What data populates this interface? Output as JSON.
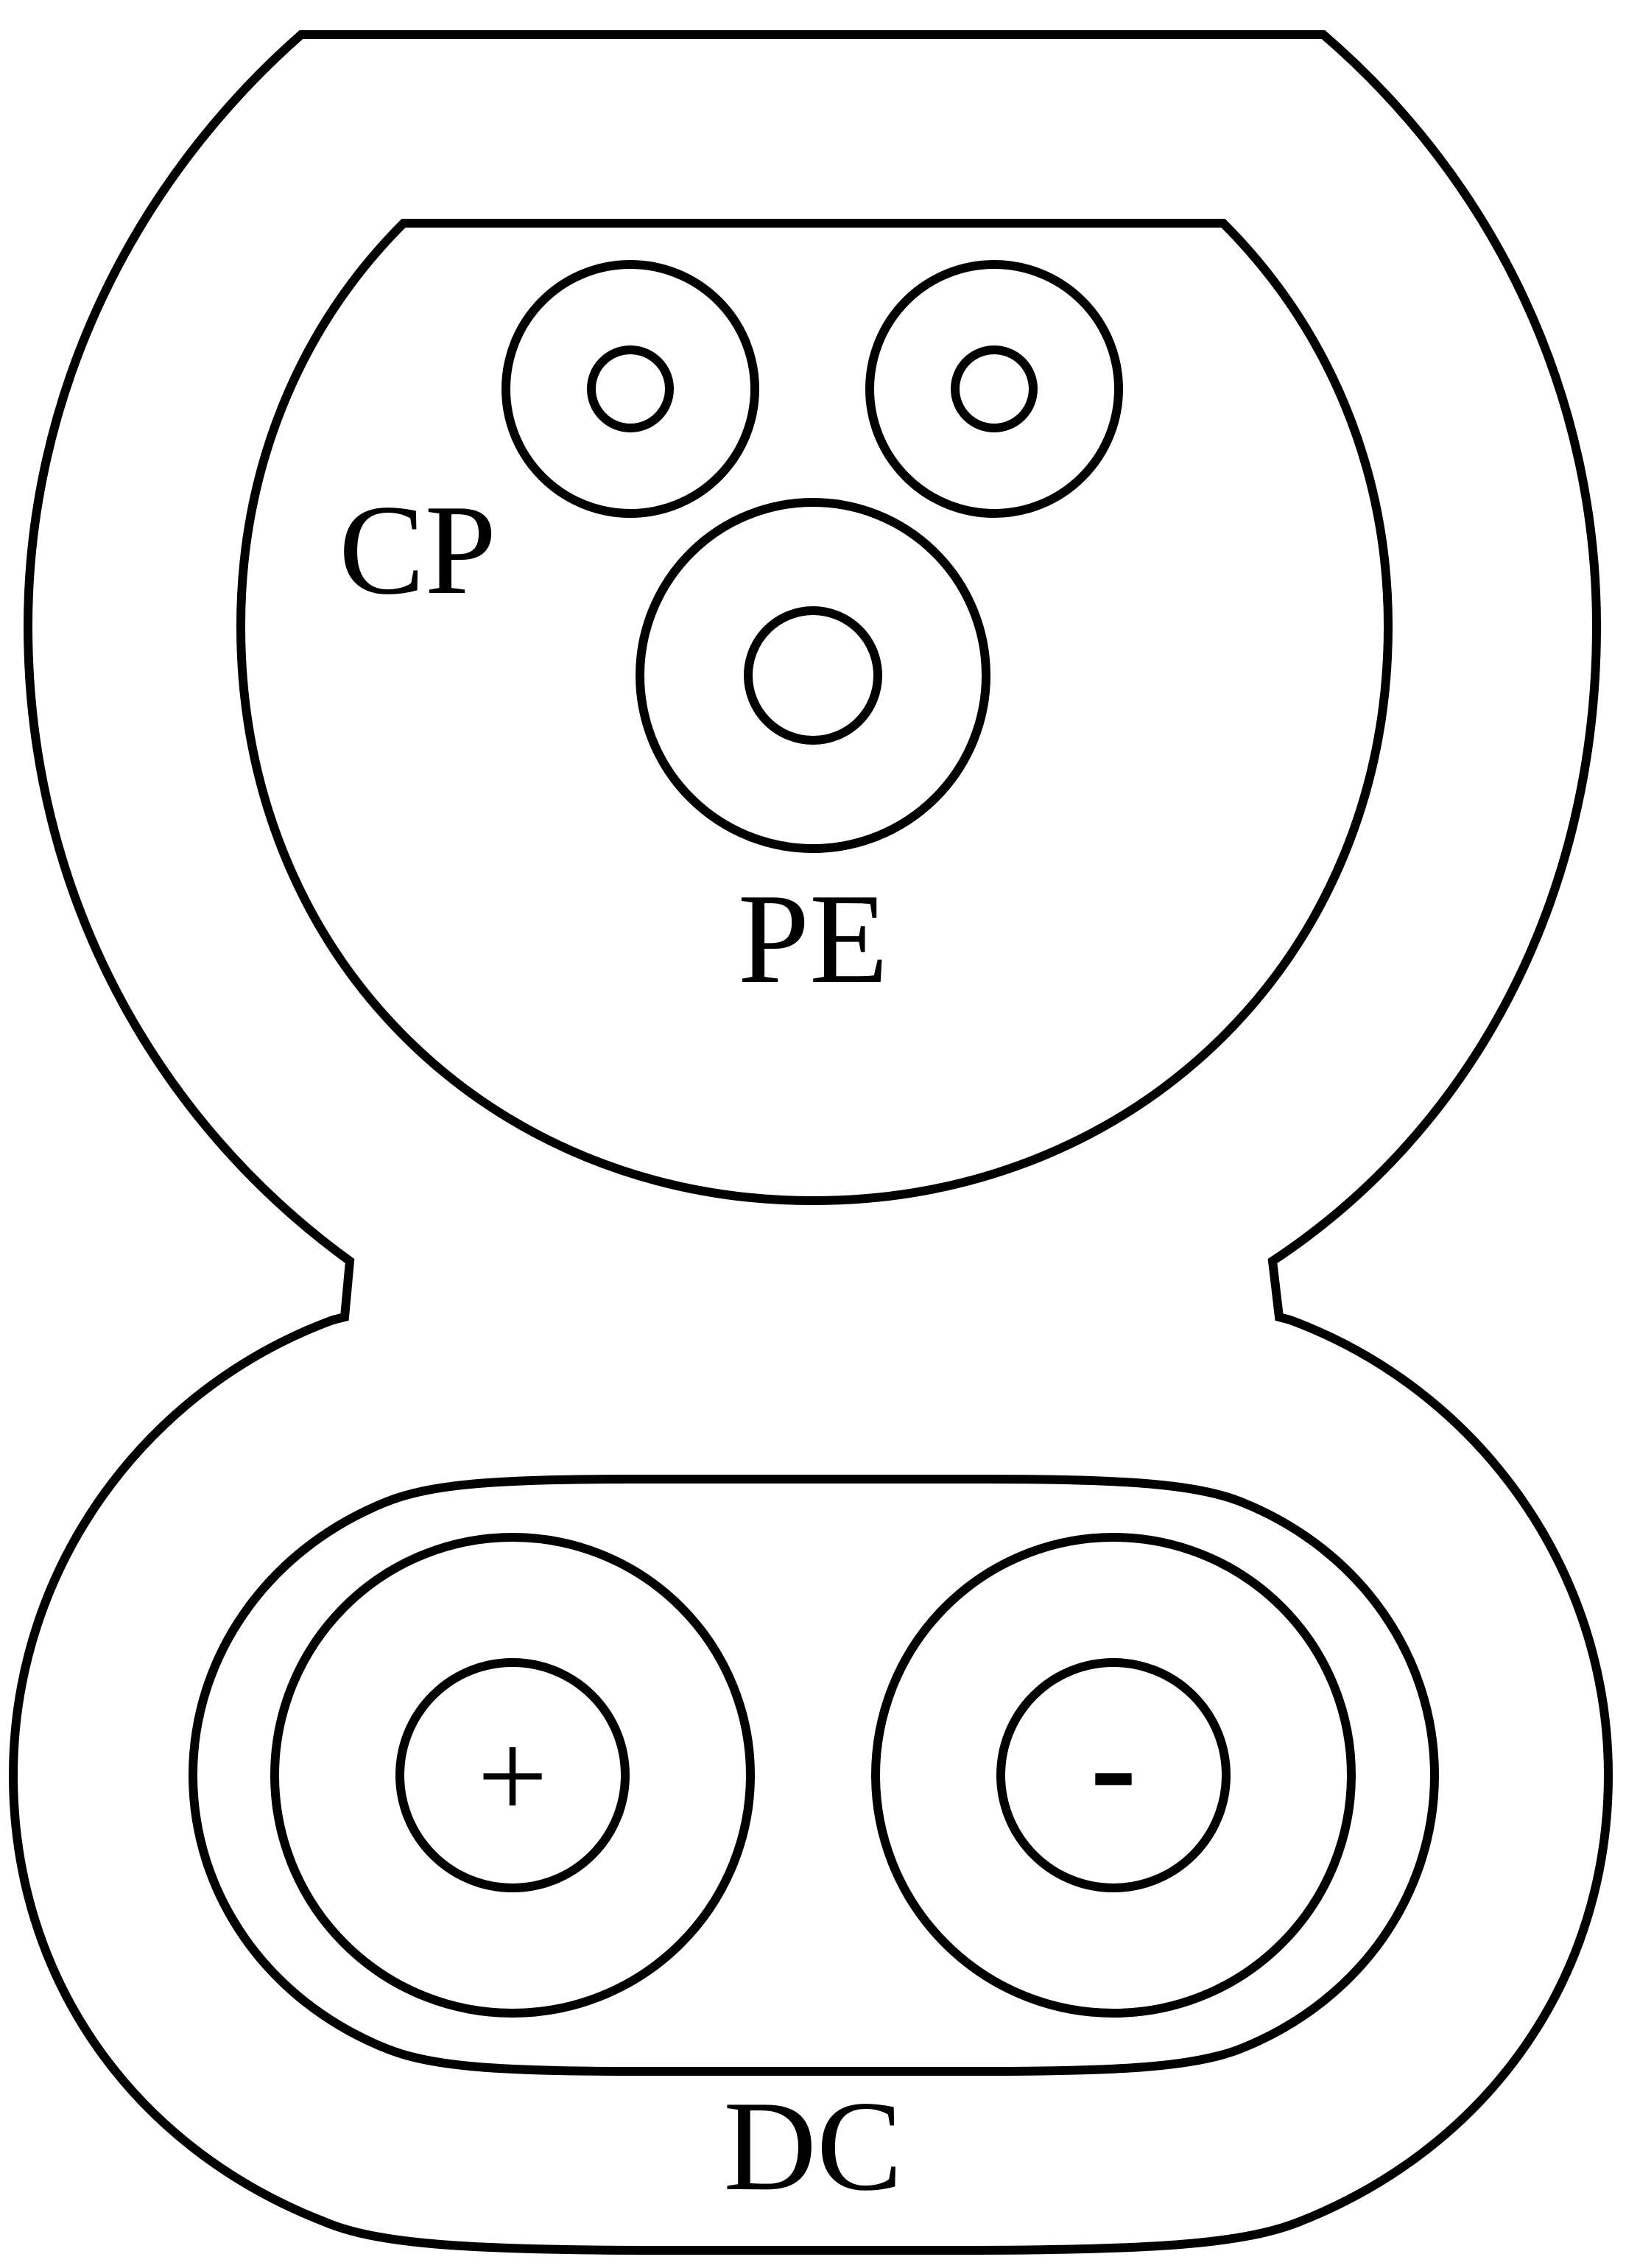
{
  "diagram": {
    "labels": {
      "cp": "CP",
      "pe": "PE",
      "dc": "DC",
      "plus": "+",
      "minus": "-"
    },
    "colors": {
      "stroke": "#000000",
      "background": "#ffffff"
    }
  }
}
